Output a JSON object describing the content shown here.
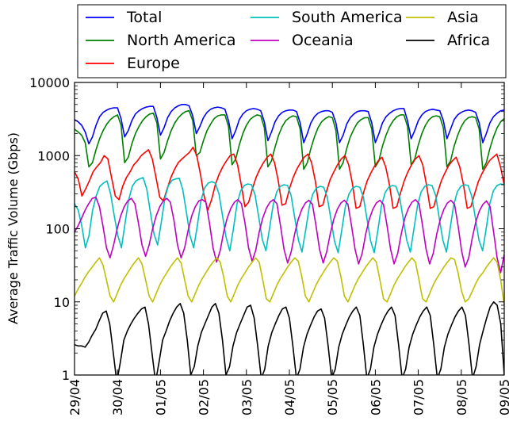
{
  "chart_data": {
    "type": "line",
    "title": "",
    "xlabel": "",
    "ylabel": "Average Traffic Volume (Gbps)",
    "yscale": "log",
    "ylim": [
      1,
      10000
    ],
    "yticks": [
      1,
      10,
      100,
      1000,
      10000
    ],
    "ytick_labels": [
      "1",
      "10",
      "100",
      "1000",
      "10000"
    ],
    "xlim": [
      "2015-04-29",
      "2015-05-09"
    ],
    "xtick_labels": [
      "29/04",
      "30/04",
      "01/05",
      "02/05",
      "03/05",
      "04/05",
      "05/05",
      "06/05",
      "07/05",
      "08/05",
      "09/05"
    ],
    "grid": false,
    "legend": {
      "placement": "top",
      "columns": 3
    },
    "sample_resolution_hours": 2,
    "series": [
      {
        "name": "Total",
        "color": "#0000ff",
        "values": [
          3100,
          2900,
          2600,
          2100,
          1450,
          1800,
          2600,
          3400,
          3900,
          4200,
          4400,
          4500,
          4500,
          3200,
          1800,
          2200,
          3000,
          3700,
          4100,
          4400,
          4600,
          4700,
          4700,
          3300,
          1900,
          2400,
          3300,
          4000,
          4500,
          4800,
          5000,
          5000,
          4800,
          3500,
          2000,
          2500,
          3300,
          3900,
          4300,
          4500,
          4600,
          4500,
          4300,
          3000,
          1700,
          2200,
          3100,
          3700,
          4100,
          4300,
          4400,
          4300,
          4100,
          2900,
          1600,
          2100,
          2900,
          3500,
          3900,
          4100,
          4200,
          4200,
          4000,
          2800,
          1500,
          2000,
          2800,
          3400,
          3800,
          4000,
          4100,
          4100,
          3900,
          2800,
          1500,
          1900,
          2700,
          3300,
          3700,
          4000,
          4100,
          4100,
          4000,
          2800,
          1500,
          2000,
          2800,
          3400,
          3800,
          4100,
          4300,
          4400,
          4400,
          3000,
          1700,
          2200,
          3000,
          3600,
          4000,
          4200,
          4300,
          4200,
          4100,
          3000,
          1700,
          2300,
          3100,
          3600,
          3900,
          4100,
          4200,
          4100,
          3900,
          2800,
          1500,
          2000,
          2800,
          3400,
          3800,
          4100,
          4200
        ]
      },
      {
        "name": "North America",
        "color": "#008000",
        "values": [
          2300,
          2100,
          1900,
          1500,
          700,
          800,
          1200,
          1700,
          2200,
          2700,
          3100,
          3400,
          3600,
          2600,
          800,
          950,
          1450,
          2000,
          2500,
          3000,
          3400,
          3700,
          3800,
          2800,
          900,
          1100,
          1600,
          2200,
          2800,
          3300,
          3700,
          4000,
          4100,
          3000,
          1000,
          1100,
          1600,
          2200,
          2700,
          3200,
          3500,
          3600,
          3600,
          2500,
          750,
          900,
          1400,
          2000,
          2600,
          3100,
          3400,
          3600,
          3500,
          2400,
          700,
          850,
          1300,
          1900,
          2500,
          3000,
          3300,
          3500,
          3400,
          2300,
          650,
          800,
          1250,
          1800,
          2400,
          2900,
          3200,
          3400,
          3300,
          2200,
          650,
          800,
          1250,
          1800,
          2300,
          2800,
          3100,
          3300,
          3300,
          2300,
          700,
          850,
          1350,
          1900,
          2500,
          3000,
          3400,
          3600,
          3600,
          2500,
          750,
          900,
          1400,
          2000,
          2600,
          3100,
          3400,
          3500,
          3400,
          2400,
          700,
          850,
          1350,
          1900,
          2500,
          3000,
          3300,
          3400,
          3300,
          2300,
          650,
          800,
          1250,
          1800,
          2400,
          2900,
          3200
        ]
      },
      {
        "name": "Europe",
        "color": "#ff0000",
        "values": [
          600,
          480,
          280,
          350,
          450,
          600,
          700,
          800,
          1000,
          900,
          500,
          280,
          250,
          380,
          500,
          600,
          750,
          850,
          1000,
          1100,
          1200,
          900,
          500,
          270,
          240,
          350,
          500,
          650,
          800,
          900,
          1000,
          1100,
          1300,
          1000,
          550,
          280,
          180,
          250,
          400,
          550,
          700,
          850,
          1000,
          1050,
          750,
          400,
          200,
          230,
          350,
          500,
          650,
          800,
          950,
          1050,
          800,
          450,
          210,
          220,
          350,
          500,
          650,
          800,
          950,
          1050,
          800,
          450,
          200,
          210,
          320,
          470,
          600,
          750,
          900,
          1000,
          750,
          420,
          190,
          200,
          310,
          450,
          580,
          720,
          850,
          950,
          700,
          400,
          190,
          200,
          310,
          450,
          600,
          750,
          900,
          1000,
          750,
          400,
          190,
          200,
          310,
          450,
          580,
          730,
          850,
          950,
          700,
          400,
          190,
          200,
          300,
          440,
          570,
          700,
          850,
          950,
          1050,
          700,
          400
        ]
      },
      {
        "name": "South America",
        "color": "#00bfbf",
        "values": [
          220,
          180,
          110,
          55,
          80,
          180,
          280,
          380,
          420,
          450,
          300,
          150,
          80,
          55,
          120,
          250,
          380,
          450,
          480,
          500,
          350,
          170,
          85,
          60,
          120,
          260,
          390,
          460,
          480,
          490,
          340,
          165,
          80,
          55,
          110,
          240,
          360,
          420,
          440,
          420,
          300,
          150,
          75,
          50,
          100,
          220,
          330,
          390,
          410,
          400,
          290,
          145,
          72,
          50,
          100,
          210,
          320,
          380,
          400,
          390,
          280,
          140,
          70,
          48,
          95,
          200,
          300,
          360,
          380,
          370,
          270,
          135,
          68,
          47,
          95,
          200,
          300,
          360,
          380,
          370,
          270,
          135,
          68,
          47,
          95,
          205,
          310,
          370,
          390,
          380,
          275,
          138,
          70,
          48,
          100,
          210,
          320,
          380,
          400,
          390,
          285,
          140,
          70,
          48,
          100,
          210,
          320,
          380,
          400,
          390,
          280,
          140,
          70,
          50,
          100,
          220,
          330,
          390,
          410,
          400
        ]
      },
      {
        "name": "Oceania",
        "color": "#bf00bf",
        "values": [
          90,
          110,
          140,
          180,
          220,
          260,
          270,
          200,
          110,
          55,
          40,
          60,
          100,
          150,
          200,
          240,
          260,
          220,
          120,
          60,
          42,
          60,
          100,
          150,
          200,
          240,
          260,
          230,
          130,
          60,
          40,
          55,
          95,
          150,
          200,
          240,
          250,
          230,
          120,
          55,
          35,
          50,
          90,
          140,
          190,
          230,
          250,
          220,
          120,
          55,
          36,
          50,
          90,
          140,
          190,
          230,
          250,
          220,
          110,
          52,
          34,
          48,
          85,
          135,
          185,
          225,
          245,
          215,
          110,
          52,
          34,
          48,
          85,
          135,
          185,
          225,
          245,
          215,
          110,
          52,
          33,
          46,
          85,
          135,
          185,
          225,
          245,
          215,
          110,
          52,
          33,
          46,
          85,
          140,
          190,
          230,
          250,
          220,
          110,
          52,
          33,
          46,
          85,
          135,
          185,
          225,
          245,
          215,
          110,
          50,
          30,
          40,
          75,
          125,
          175,
          215,
          240,
          200,
          90,
          40,
          25,
          45
        ]
      },
      {
        "name": "Asia",
        "color": "#bfbf00",
        "values": [
          12,
          15,
          18,
          22,
          26,
          30,
          35,
          40,
          32,
          20,
          12,
          10,
          13,
          17,
          21,
          25,
          30,
          35,
          40,
          33,
          20,
          12,
          10,
          13,
          17,
          21,
          25,
          30,
          35,
          40,
          34,
          20,
          12,
          10,
          13,
          17,
          21,
          25,
          30,
          35,
          40,
          35,
          22,
          12,
          10,
          13,
          17,
          21,
          25,
          30,
          35,
          40,
          35,
          20,
          11,
          10,
          13,
          17,
          21,
          25,
          30,
          35,
          40,
          36,
          22,
          12,
          10,
          13,
          17,
          21,
          25,
          30,
          35,
          40,
          36,
          22,
          12,
          10,
          13,
          17,
          21,
          25,
          30,
          35,
          40,
          35,
          20,
          11,
          10,
          13,
          17,
          21,
          25,
          30,
          35,
          40,
          35,
          20,
          11,
          10,
          13,
          17,
          21,
          25,
          30,
          35,
          40,
          38,
          25,
          14,
          10,
          11,
          14,
          18,
          22,
          25,
          30,
          35,
          40,
          35,
          20,
          9
        ]
      },
      {
        "name": "Africa",
        "color": "#000000",
        "values": [
          2.6,
          2.5,
          2.5,
          2.4,
          2.8,
          3.5,
          4.2,
          5.5,
          7,
          7.5,
          5,
          2,
          0.8,
          1.5,
          3,
          4,
          5,
          6,
          7,
          8,
          8.5,
          5,
          2,
          0.8,
          1.5,
          3,
          4,
          5.5,
          7,
          8.5,
          9.5,
          7,
          3,
          1,
          1.3,
          2.5,
          3.8,
          5,
          6.5,
          8.5,
          9.5,
          7,
          3,
          1,
          1.3,
          2.5,
          3.8,
          5,
          6.5,
          8.5,
          9,
          6,
          2.5,
          0.9,
          1.2,
          2.5,
          3.8,
          5,
          6.5,
          8,
          8.5,
          6,
          2.5,
          0.9,
          1.2,
          2.4,
          3.6,
          4.8,
          6.2,
          7.5,
          8,
          6,
          2.5,
          0.9,
          1.2,
          2.4,
          3.6,
          4.8,
          6.2,
          7.5,
          8.5,
          6.5,
          2.6,
          0.9,
          1.2,
          2.4,
          3.6,
          4.8,
          6.2,
          7.5,
          8.5,
          6.5,
          2.6,
          0.9,
          1.2,
          2.4,
          3.6,
          4.8,
          6.2,
          7.5,
          8.5,
          6.5,
          2.6,
          0.9,
          1.2,
          2.4,
          3.6,
          4.8,
          6.2,
          7.5,
          8.5,
          6.5,
          2.6,
          0.9,
          1.3,
          2.6,
          4,
          6,
          8.5,
          10,
          9,
          5,
          1
        ]
      }
    ]
  }
}
